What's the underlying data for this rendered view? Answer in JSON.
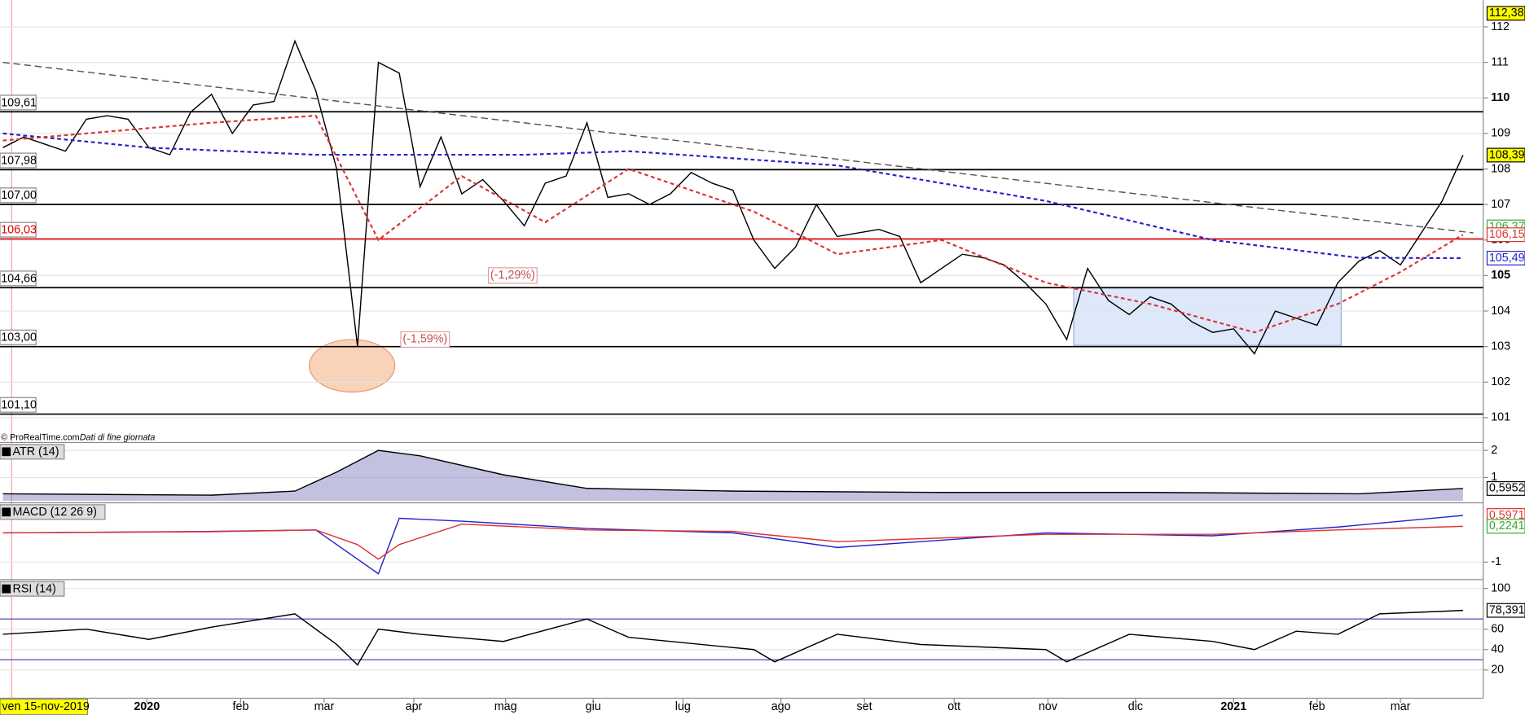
{
  "chart_data": [
    {
      "type": "line",
      "panel": [
        0,
        455
      ],
      "xlim": [
        0,
        70.5
      ],
      "xticks": [
        {
          "value": 6.9,
          "label": "2020"
        },
        {
          "value": 11.4,
          "label": "feb"
        },
        {
          "value": 15.4,
          "label": "mar"
        },
        {
          "value": 19.7,
          "label": "apr"
        },
        {
          "value": 24.1,
          "label": "mag"
        },
        {
          "value": 28.3,
          "label": "giu"
        },
        {
          "value": 32.6,
          "label": "lug"
        },
        {
          "value": 37.3,
          "label": "ago"
        },
        {
          "value": 41.3,
          "label": "set"
        },
        {
          "value": 45.6,
          "label": "ott"
        },
        {
          "value": 50.1,
          "label": "nov"
        },
        {
          "value": 54.3,
          "label": "dic"
        },
        {
          "value": 59.0,
          "label": "2021"
        },
        {
          "value": 63.0,
          "label": "feb"
        },
        {
          "value": 67.0,
          "label": "mar"
        }
      ],
      "ylim": [
        100.3,
        112.75
      ],
      "yticks": [
        101,
        102,
        103,
        104,
        105,
        106,
        107,
        108,
        109,
        110,
        111,
        112
      ],
      "series": [
        {
          "color": "#000000",
          "values": [
            108.6,
            108.9,
            108.7,
            108.5,
            109.4,
            109.5,
            109.4,
            108.6,
            108.4,
            109.6,
            110.1,
            109.0,
            109.8,
            109.9,
            111.6,
            110.2,
            108.0,
            103.0,
            111.0,
            110.7,
            107.5,
            108.9,
            107.3,
            107.7,
            107.1,
            106.4,
            107.6,
            107.8,
            109.3,
            107.2,
            107.3,
            107.0,
            107.3,
            107.9,
            107.6,
            107.4,
            106.0,
            105.2,
            105.8,
            107.0,
            106.1,
            106.2,
            106.3,
            106.1,
            104.8,
            105.2,
            105.6,
            105.5,
            105.3,
            104.8,
            104.2,
            103.2,
            105.2,
            104.3,
            103.9,
            104.4,
            104.2,
            103.7,
            103.4,
            103.5,
            102.8,
            104.0,
            103.8,
            103.6,
            104.8,
            105.4,
            105.7,
            105.3,
            106.2,
            107.1,
            108.39
          ]
        },
        {
          "color": "#2222cc",
          "style": "dashed",
          "x": [
            0,
            7,
            15,
            25,
            30,
            40,
            50,
            58,
            65,
            70
          ],
          "values": [
            109.0,
            108.6,
            108.4,
            108.4,
            108.5,
            108.1,
            107.1,
            106.0,
            105.5,
            105.49
          ]
        },
        {
          "color": "#dd3333",
          "style": "dashed",
          "x": [
            0,
            10,
            15,
            18,
            22,
            26,
            30,
            36,
            40,
            45,
            50,
            55,
            60,
            64,
            67,
            70
          ],
          "values": [
            108.8,
            109.3,
            109.5,
            106.0,
            107.8,
            106.5,
            108.0,
            106.8,
            105.6,
            106.0,
            104.8,
            104.2,
            103.4,
            104.2,
            105.1,
            106.15
          ]
        },
        {
          "color": "#555555",
          "style": "trend",
          "x": [
            0,
            70.5
          ],
          "values": [
            111.0,
            106.2
          ]
        }
      ],
      "levels": [
        {
          "value": 109.61,
          "label": "109,61",
          "color": "#000000"
        },
        {
          "value": 107.98,
          "label": "107,98",
          "color": "#000000"
        },
        {
          "value": 107.0,
          "label": "107,00",
          "color": "#000000"
        },
        {
          "value": 106.03,
          "label": "106,03",
          "color": "#dd0000"
        },
        {
          "value": 104.66,
          "label": "104,66",
          "color": "#000000"
        },
        {
          "value": 103.0,
          "label": "103,00",
          "color": "#000000"
        },
        {
          "value": 101.1,
          "label": "101,10",
          "color": "#000000"
        }
      ],
      "right_labels": [
        {
          "value": 112.38,
          "label": "112,38",
          "color": "#000000",
          "bg": "#ffff00"
        },
        {
          "value": 108.39,
          "label": "108,39",
          "color": "#000000",
          "bg": "#ffff00"
        },
        {
          "value": 106.37,
          "label": "106,37",
          "color": "#33aa33",
          "bg": "#ffffff"
        },
        {
          "value": 106.15,
          "label": "106,15",
          "color": "#dd3333",
          "bg": "#ffffff"
        },
        {
          "value": 105.49,
          "label": "105,49",
          "color": "#2222cc",
          "bg": "#ffffff"
        }
      ],
      "annotations": [
        {
          "x": 24.3,
          "y": 105.0,
          "text": "(-1,29%)"
        },
        {
          "x": 20.1,
          "y": 103.2,
          "text": "(-1,59%)"
        }
      ],
      "source": "© ProRealTime.com",
      "source_note": "Dati di fine giornata",
      "cursor_label": "ven 15-nov-2019"
    },
    {
      "type": "area",
      "panel": [
        455,
        515
      ],
      "title": "ATR (14)",
      "color": "#7777bb",
      "xlim": [
        0,
        70.5
      ],
      "ylim": [
        0.14,
        2.29
      ],
      "yticks": [
        1,
        2
      ],
      "series": [
        {
          "color": "#000000",
          "x": [
            0,
            10,
            14,
            16,
            18,
            20,
            24,
            28,
            35,
            45,
            55,
            65,
            70
          ],
          "values": [
            0.4,
            0.35,
            0.5,
            1.2,
            2.0,
            1.8,
            1.1,
            0.6,
            0.5,
            0.45,
            0.45,
            0.4,
            0.5952
          ]
        }
      ],
      "value_labels": [
        {
          "value": 0.5952,
          "label": "0,5952",
          "color": "#000000"
        }
      ]
    },
    {
      "type": "line",
      "panel": [
        517,
        593
      ],
      "title": "MACD (12 26 9)",
      "xlim": [
        0,
        70.5
      ],
      "ylim": [
        -1.5,
        1.03
      ],
      "yticks": [
        -1
      ],
      "series": [
        {
          "color": "#2222cc",
          "x": [
            0,
            10,
            15,
            17,
            18,
            19,
            22,
            28,
            35,
            40,
            50,
            58,
            64,
            70
          ],
          "values": [
            0.0,
            0.05,
            0.1,
            -0.9,
            -1.4,
            0.5,
            0.4,
            0.15,
            0.0,
            -0.5,
            0.0,
            -0.1,
            0.2,
            0.5971
          ]
        },
        {
          "color": "#dd3333",
          "x": [
            0,
            10,
            15,
            17,
            18,
            19,
            22,
            28,
            35,
            40,
            50,
            58,
            64,
            70
          ],
          "values": [
            0.0,
            0.04,
            0.1,
            -0.4,
            -0.9,
            -0.4,
            0.3,
            0.1,
            0.05,
            -0.3,
            -0.05,
            -0.05,
            0.1,
            0.2241
          ]
        }
      ],
      "value_labels": [
        {
          "value": 0.5971,
          "label": "0,5971",
          "color": "#dd3333"
        },
        {
          "value": 0.2241,
          "label": "0,2241",
          "color": "#33aa33"
        }
      ]
    },
    {
      "type": "line",
      "panel": [
        596,
        715
      ],
      "title": "RSI (14)",
      "xlim": [
        0,
        70.5
      ],
      "ylim": [
        -4.8,
        108.6
      ],
      "yticks": [
        20,
        40,
        60,
        100
      ],
      "levels": [
        70,
        30
      ],
      "series": [
        {
          "color": "#000000",
          "x": [
            0,
            4,
            7,
            10,
            14,
            16,
            17,
            18,
            20,
            24,
            28,
            30,
            36,
            37,
            40,
            44,
            50,
            51,
            54,
            58,
            60,
            62,
            64,
            66,
            70
          ],
          "values": [
            55,
            60,
            50,
            62,
            75,
            45,
            25,
            60,
            55,
            48,
            70,
            52,
            40,
            28,
            55,
            45,
            40,
            28,
            55,
            48,
            40,
            58,
            55,
            75,
            78.391
          ]
        }
      ],
      "value_labels": [
        {
          "value": 78.391,
          "label": "78,391",
          "color": "#000000"
        }
      ]
    }
  ]
}
